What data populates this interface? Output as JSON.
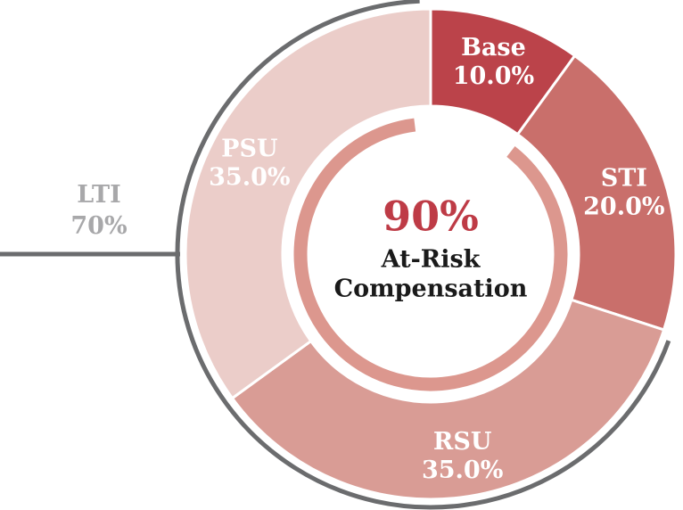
{
  "page": {
    "background": "#ffffff"
  },
  "chart_data": {
    "type": "pie",
    "subtype": "donut-with-inner-ring-and-outer-bracket",
    "direction": "clockwise",
    "start_angle_deg": 0,
    "legend_position": "none",
    "grid": false,
    "segments": [
      {
        "label": "Base",
        "pct_label": "10.0%",
        "value": 10,
        "color": "#bb434a",
        "text_color": "#ffffff"
      },
      {
        "label": "STI",
        "pct_label": "20.0%",
        "value": 20,
        "color": "#c96f6b",
        "text_color": "#ffffff"
      },
      {
        "label": "RSU",
        "pct_label": "35.0%",
        "value": 35,
        "color": "#d99c95",
        "text_color": "#ffffff"
      },
      {
        "label": "PSU",
        "pct_label": "35.0%",
        "value": 35,
        "color": "#ebcdc9",
        "text_color": "#ffffff"
      }
    ],
    "inner_ring": {
      "represents": "At-Risk Compensation",
      "value": 90,
      "color": "#dc978e"
    },
    "center_label": {
      "value": "90%",
      "value_color": "#be3b46",
      "line1": "At-Risk",
      "line2": "Compensation",
      "text_color": "#1a1a1a"
    },
    "outer_bracket": {
      "label": "LTI",
      "pct_label": "70%",
      "value": 70,
      "covers": [
        "RSU",
        "PSU"
      ],
      "arc_color": "#6b6c6e",
      "text_color": "#a8a8aa"
    }
  }
}
